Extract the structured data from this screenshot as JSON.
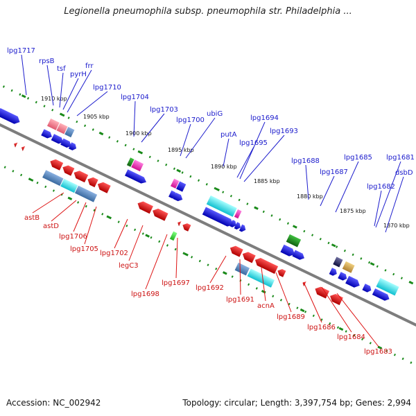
{
  "header": {
    "title": "Legionella pneumophila subsp. pneumophila str. Philadelphia ..."
  },
  "footer": {
    "accession": "Accession: NC_002942",
    "topology": "Topology: circular; Length: 3,397,754 bp; Genes: 2,994"
  },
  "map": {
    "backbone_color": "#808080",
    "track_dot_color": "#1a8a1a",
    "scale_ticks": [
      "1910 kbp",
      "1905 kbp",
      "1900 kbp",
      "1895 kbp",
      "1890 kbp",
      "1885 kbp",
      "1880 kbp",
      "1875 kbp",
      "1870 kbp"
    ],
    "forward_labels": [
      "lpg1717",
      "rpsB",
      "tsf",
      "pyrH",
      "frr",
      "lpg1710",
      "lpg1704",
      "lpg1703",
      "lpg1700",
      "ubiG",
      "putA",
      "lpg1695",
      "lpg1694",
      "lpg1693",
      "lpg1688",
      "lpg1687",
      "lpg1685",
      "lpg1682",
      "lpg1681",
      "dsbD"
    ],
    "reverse_labels": [
      "astB",
      "astD",
      "lpg1706",
      "lpg1705",
      "lpg1702",
      "legC3",
      "lpg1698",
      "lpg1697",
      "lpg1692",
      "lpg1691",
      "acnA",
      "lpg1689",
      "lpg1686",
      "lpg1684",
      "lpg1683"
    ],
    "colors": {
      "forward": "#1a1acc",
      "reverse": "#dd1111"
    }
  }
}
